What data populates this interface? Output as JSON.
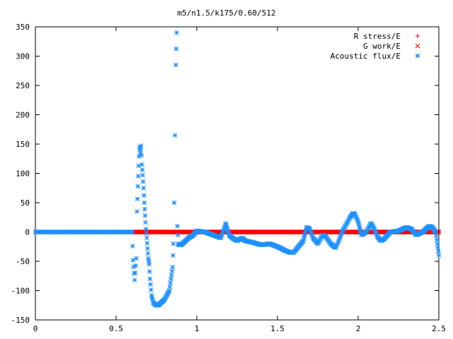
{
  "chart_data": {
    "type": "scatter",
    "title": "m5/n1.5/k175/0.60/512",
    "xlabel": "",
    "ylabel": "",
    "xlim": [
      0,
      2.5
    ],
    "ylim": [
      -150,
      350
    ],
    "x_ticks": [
      "0",
      "0.5",
      "1",
      "1.5",
      "2",
      "2.5"
    ],
    "y_ticks": [
      "350",
      "300",
      "250",
      "200",
      "150",
      "100",
      "50",
      "0",
      "-50",
      "-100",
      "-150"
    ],
    "legend_position": "top-right",
    "legend": [
      {
        "label": "R stress/E",
        "marker": "+",
        "color": "#ff0000"
      },
      {
        "label": "G work/E",
        "marker": "x",
        "color": "#ff0000"
      },
      {
        "label": "Acoustic flux/E",
        "marker": "*",
        "color": "#1e90ff"
      }
    ],
    "series": [
      {
        "name": "R stress/E",
        "marker": "+",
        "color": "#ff0000",
        "x": [
          0.0,
          0.5,
          1.0,
          1.5,
          2.0,
          2.5
        ],
        "y": [
          0,
          0,
          0,
          0,
          0,
          0
        ]
      },
      {
        "name": "G work/E",
        "marker": "x",
        "color": "#ff0000",
        "x": [
          0.6,
          0.8,
          1.0,
          1.2,
          1.4,
          1.6,
          1.8,
          2.0,
          2.2,
          2.4,
          2.5
        ],
        "y": [
          0,
          0,
          0,
          0,
          0,
          0,
          0,
          0,
          0,
          0,
          0
        ]
      },
      {
        "name": "Acoustic flux/E",
        "marker": "*",
        "color": "#1e90ff",
        "x": [
          0.0,
          0.1,
          0.2,
          0.3,
          0.4,
          0.5,
          0.6,
          0.605,
          0.615,
          0.625,
          0.63,
          0.635,
          0.64,
          0.645,
          0.65,
          0.655,
          0.66,
          0.665,
          0.67,
          0.675,
          0.68,
          0.685,
          0.69,
          0.695,
          0.7,
          0.705,
          0.71,
          0.72,
          0.73,
          0.74,
          0.75,
          0.76,
          0.77,
          0.78,
          0.79,
          0.8,
          0.81,
          0.82,
          0.83,
          0.84,
          0.85,
          0.855,
          0.86,
          0.865,
          0.87,
          0.875,
          0.88,
          0.885,
          0.89,
          0.9,
          0.92,
          0.95,
          0.98,
          1.0,
          1.05,
          1.1,
          1.15,
          1.18,
          1.2,
          1.22,
          1.25,
          1.28,
          1.3,
          1.35,
          1.4,
          1.45,
          1.5,
          1.55,
          1.58,
          1.6,
          1.63,
          1.66,
          1.68,
          1.7,
          1.72,
          1.75,
          1.78,
          1.8,
          1.83,
          1.86,
          1.88,
          1.9,
          1.92,
          1.95,
          1.97,
          1.98,
          2.0,
          2.02,
          2.05,
          2.08,
          2.1,
          2.12,
          2.14,
          2.16,
          2.2,
          2.25,
          2.3,
          2.33,
          2.36,
          2.4,
          2.42,
          2.44,
          2.46,
          2.48,
          2.5
        ],
        "y": [
          0,
          0,
          0,
          0,
          0,
          0,
          0,
          -48,
          -82,
          -45,
          35,
          78,
          113,
          145,
          135,
          147,
          115,
          97,
          75,
          50,
          28,
          5,
          -10,
          -28,
          -45,
          -55,
          -80,
          -108,
          -120,
          -123,
          -125,
          -125,
          -123,
          -120,
          -118,
          -115,
          -110,
          -105,
          -100,
          -80,
          -60,
          -20,
          50,
          165,
          285,
          340,
          10,
          -20,
          -22,
          -22,
          -18,
          -10,
          -5,
          2,
          0,
          -5,
          -10,
          15,
          -5,
          -10,
          -15,
          -10,
          -15,
          -18,
          -22,
          -20,
          -25,
          -32,
          -35,
          -35,
          -25,
          -15,
          8,
          5,
          -10,
          -20,
          -5,
          -8,
          -20,
          -27,
          -15,
          0,
          10,
          25,
          32,
          30,
          18,
          -5,
          0,
          15,
          5,
          -8,
          -15,
          -12,
          0,
          2,
          8,
          5,
          -5,
          0,
          5,
          10,
          8,
          0,
          -40
        ]
      }
    ]
  }
}
